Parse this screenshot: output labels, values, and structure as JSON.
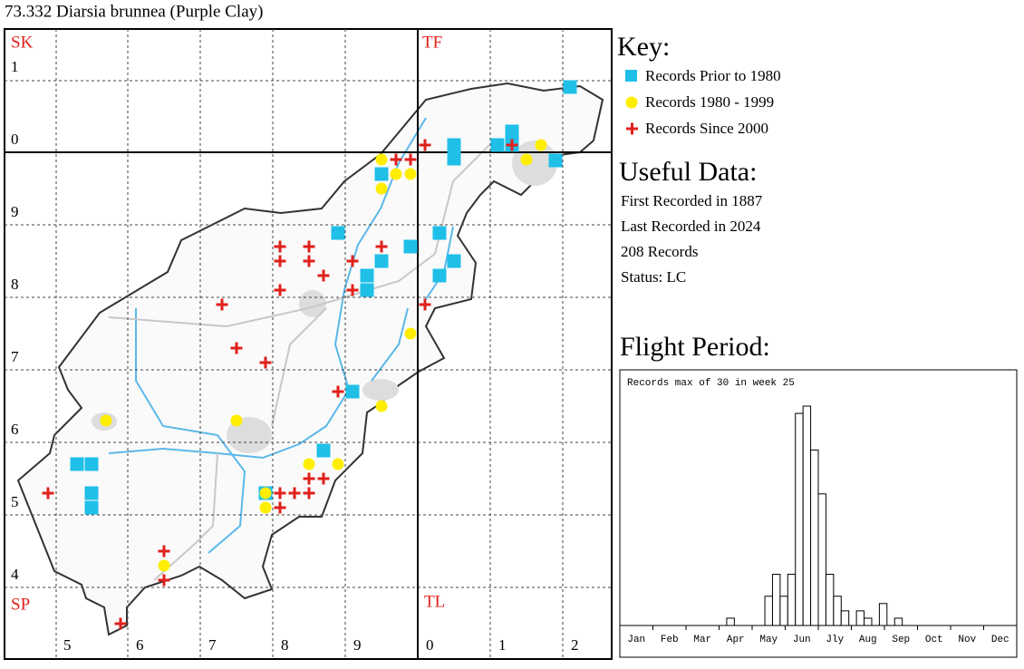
{
  "title": "73.332 Diarsia brunnea (Purple Clay)",
  "map": {
    "squares": [
      "SK",
      "TF",
      "SP",
      "TL"
    ],
    "left_labels": [
      1,
      0,
      9,
      8,
      7,
      6,
      5,
      4
    ],
    "bottom_labels": [
      5,
      6,
      7,
      8,
      9,
      0,
      1,
      2
    ]
  },
  "key": {
    "heading": "Key:",
    "items": [
      "Records Prior to 1980",
      "Records 1980 - 1999",
      "Records Since 2000"
    ]
  },
  "useful_data": {
    "heading": "Useful Data:",
    "lines": [
      "First Recorded in 1887",
      "Last Recorded in 2024",
      "208 Records",
      "Status: LC"
    ]
  },
  "flight_period": {
    "heading": "Flight Period:"
  },
  "chart_data": {
    "type": "bar",
    "title": "Records max of 30 in week 25",
    "month_labels": [
      "Jan",
      "Feb",
      "Mar",
      "Apr",
      "May",
      "Jun",
      "Jly",
      "Aug",
      "Sep",
      "Oct",
      "Nov",
      "Dec"
    ],
    "values": [
      0,
      0,
      0,
      0,
      0,
      0,
      0,
      0,
      0,
      0,
      0,
      0,
      0,
      0,
      1,
      0,
      0,
      0,
      0,
      4,
      7,
      4,
      7,
      29,
      30,
      24,
      18,
      7,
      4,
      2,
      0,
      2,
      1,
      0,
      3,
      0,
      1,
      0,
      0,
      0,
      0,
      0,
      0,
      0,
      0,
      0,
      0,
      0,
      0,
      0,
      0,
      0
    ]
  }
}
